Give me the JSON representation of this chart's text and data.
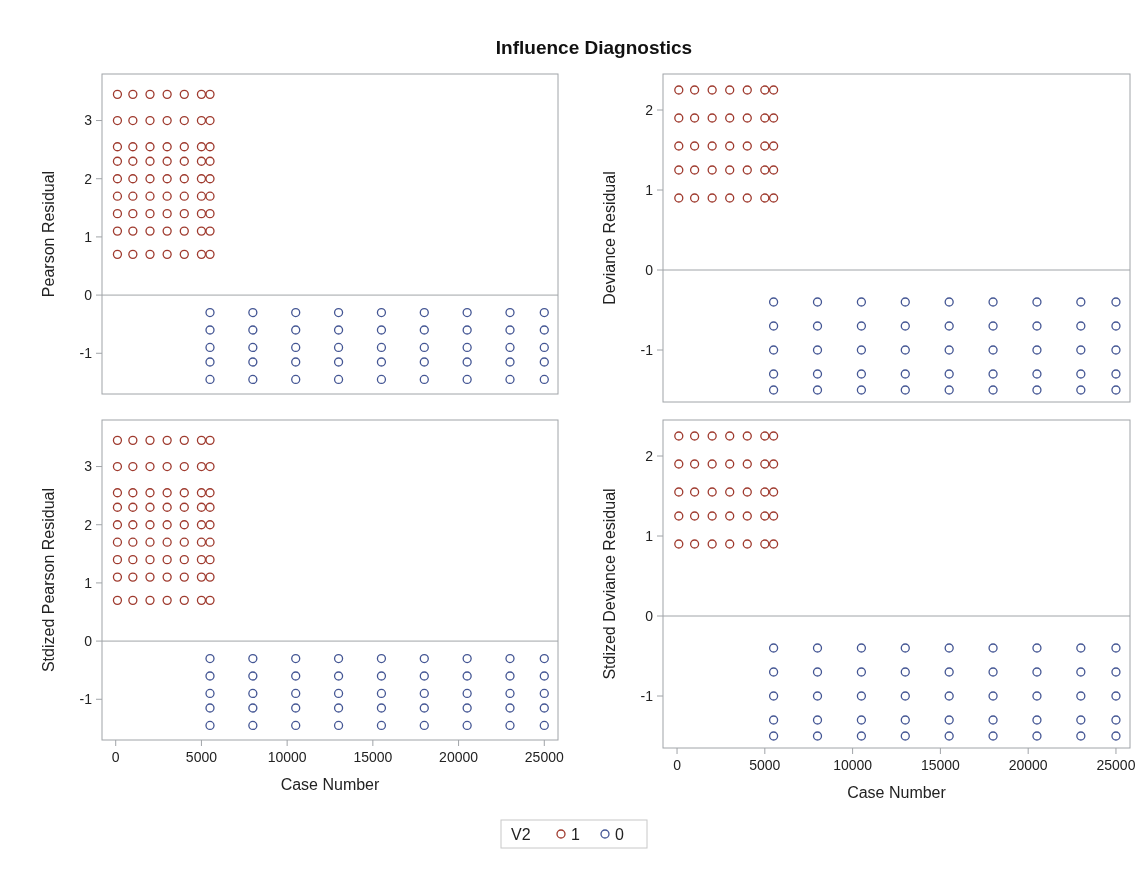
{
  "chart_data": [
    {
      "type": "scatter",
      "title": "Influence Diagnostics",
      "ylabel": "Pearson Residual",
      "xlim": [
        -800,
        25800
      ],
      "ylim": [
        -1.7,
        3.8
      ],
      "yticks": [
        -1,
        0,
        1,
        2,
        3
      ],
      "tick_labels": "y",
      "marker": "circle",
      "ref_lines": [
        {
          "axis": "y",
          "value": 0
        }
      ],
      "series": [
        {
          "color": "#9f3a2e",
          "x": [
            100,
            1000,
            2000,
            3000,
            4000,
            5000,
            5500,
            100,
            1000,
            2000,
            3000,
            4000,
            5000,
            5500,
            100,
            1000,
            2000,
            3000,
            4000,
            5000,
            5500,
            100,
            1000,
            2000,
            3000,
            4000,
            5000,
            5500,
            100,
            1000,
            2000,
            3000,
            4000,
            5000,
            5500,
            100,
            1000,
            2000,
            3000,
            4000,
            5000,
            5500,
            100,
            1000,
            2000,
            3000,
            4000,
            5000,
            5500,
            100,
            1000,
            2000,
            3000,
            4000,
            5000,
            5500,
            100,
            1000,
            2000,
            3000,
            4000,
            5000,
            5500
          ],
          "values": [
            3.45,
            3.45,
            3.45,
            3.45,
            3.45,
            3.45,
            3.45,
            3,
            3,
            3,
            3,
            3,
            3,
            3,
            2.55,
            2.55,
            2.55,
            2.55,
            2.55,
            2.55,
            2.55,
            2.3,
            2.3,
            2.3,
            2.3,
            2.3,
            2.3,
            2.3,
            2,
            2,
            2,
            2,
            2,
            2,
            2,
            1.7,
            1.7,
            1.7,
            1.7,
            1.7,
            1.7,
            1.7,
            1.4,
            1.4,
            1.4,
            1.4,
            1.4,
            1.4,
            1.4,
            1.1,
            1.1,
            1.1,
            1.1,
            1.1,
            1.1,
            1.1,
            0.7,
            0.7,
            0.7,
            0.7,
            0.7,
            0.7,
            0.7
          ]
        },
        {
          "color": "#445694",
          "x": [
            5500,
            8000,
            10500,
            13000,
            15500,
            18000,
            20500,
            23000,
            25000,
            5500,
            8000,
            10500,
            13000,
            15500,
            18000,
            20500,
            23000,
            25000,
            5500,
            8000,
            10500,
            13000,
            15500,
            18000,
            20500,
            23000,
            25000,
            5500,
            8000,
            10500,
            13000,
            15500,
            18000,
            20500,
            23000,
            25000,
            5500,
            8000,
            10500,
            13000,
            15500,
            18000,
            20500,
            23000,
            25000
          ],
          "values": [
            -0.3,
            -0.3,
            -0.3,
            -0.3,
            -0.3,
            -0.3,
            -0.3,
            -0.3,
            -0.3,
            -0.6,
            -0.6,
            -0.6,
            -0.6,
            -0.6,
            -0.6,
            -0.6,
            -0.6,
            -0.6,
            -0.9,
            -0.9,
            -0.9,
            -0.9,
            -0.9,
            -0.9,
            -0.9,
            -0.9,
            -0.9,
            -1.15,
            -1.15,
            -1.15,
            -1.15,
            -1.15,
            -1.15,
            -1.15,
            -1.15,
            -1.15,
            -1.45,
            -1.45,
            -1.45,
            -1.45,
            -1.45,
            -1.45,
            -1.45,
            -1.45,
            -1.45
          ]
        }
      ]
    },
    {
      "type": "scatter",
      "ylabel": "Deviance Residual",
      "xlim": [
        -800,
        25800
      ],
      "ylim": [
        -1.65,
        2.45
      ],
      "yticks": [
        -1,
        0,
        1,
        2
      ],
      "tick_labels": "y",
      "marker": "circle",
      "ref_lines": [
        {
          "axis": "y",
          "value": 0
        }
      ],
      "series": [
        {
          "color": "#9f3a2e",
          "x": [
            100,
            1000,
            2000,
            3000,
            4000,
            5000,
            5500,
            100,
            1000,
            2000,
            3000,
            4000,
            5000,
            5500,
            100,
            1000,
            2000,
            3000,
            4000,
            5000,
            5500,
            100,
            1000,
            2000,
            3000,
            4000,
            5000,
            5500,
            100,
            1000,
            2000,
            3000,
            4000,
            5000,
            5500
          ],
          "values": [
            2.25,
            2.25,
            2.25,
            2.25,
            2.25,
            2.25,
            2.25,
            1.9,
            1.9,
            1.9,
            1.9,
            1.9,
            1.9,
            1.9,
            1.55,
            1.55,
            1.55,
            1.55,
            1.55,
            1.55,
            1.55,
            1.25,
            1.25,
            1.25,
            1.25,
            1.25,
            1.25,
            1.25,
            0.9,
            0.9,
            0.9,
            0.9,
            0.9,
            0.9,
            0.9
          ]
        },
        {
          "color": "#445694",
          "x": [
            5500,
            8000,
            10500,
            13000,
            15500,
            18000,
            20500,
            23000,
            25000,
            5500,
            8000,
            10500,
            13000,
            15500,
            18000,
            20500,
            23000,
            25000,
            5500,
            8000,
            10500,
            13000,
            15500,
            18000,
            20500,
            23000,
            25000,
            5500,
            8000,
            10500,
            13000,
            15500,
            18000,
            20500,
            23000,
            25000,
            5500,
            8000,
            10500,
            13000,
            15500,
            18000,
            20500,
            23000,
            25000
          ],
          "values": [
            -0.4,
            -0.4,
            -0.4,
            -0.4,
            -0.4,
            -0.4,
            -0.4,
            -0.4,
            -0.4,
            -0.7,
            -0.7,
            -0.7,
            -0.7,
            -0.7,
            -0.7,
            -0.7,
            -0.7,
            -0.7,
            -1,
            -1,
            -1,
            -1,
            -1,
            -1,
            -1,
            -1,
            -1,
            -1.3,
            -1.3,
            -1.3,
            -1.3,
            -1.3,
            -1.3,
            -1.3,
            -1.3,
            -1.3,
            -1.5,
            -1.5,
            -1.5,
            -1.5,
            -1.5,
            -1.5,
            -1.5,
            -1.5,
            -1.5
          ]
        }
      ]
    },
    {
      "type": "scatter",
      "xlabel": "Case Number",
      "ylabel": "Stdized Pearson Residual",
      "xlim": [
        -800,
        25800
      ],
      "xticks": [
        0,
        5000,
        10000,
        15000,
        20000,
        25000
      ],
      "ylim": [
        -1.7,
        3.8
      ],
      "yticks": [
        -1,
        0,
        1,
        2,
        3
      ],
      "marker": "circle",
      "ref_lines": [
        {
          "axis": "y",
          "value": 0
        }
      ],
      "series": [
        {
          "color": "#9f3a2e",
          "x": [
            100,
            1000,
            2000,
            3000,
            4000,
            5000,
            5500,
            100,
            1000,
            2000,
            3000,
            4000,
            5000,
            5500,
            100,
            1000,
            2000,
            3000,
            4000,
            5000,
            5500,
            100,
            1000,
            2000,
            3000,
            4000,
            5000,
            5500,
            100,
            1000,
            2000,
            3000,
            4000,
            5000,
            5500,
            100,
            1000,
            2000,
            3000,
            4000,
            5000,
            5500,
            100,
            1000,
            2000,
            3000,
            4000,
            5000,
            5500,
            100,
            1000,
            2000,
            3000,
            4000,
            5000,
            5500,
            100,
            1000,
            2000,
            3000,
            4000,
            5000,
            5500
          ],
          "values": [
            3.45,
            3.45,
            3.45,
            3.45,
            3.45,
            3.45,
            3.45,
            3,
            3,
            3,
            3,
            3,
            3,
            3,
            2.55,
            2.55,
            2.55,
            2.55,
            2.55,
            2.55,
            2.55,
            2.3,
            2.3,
            2.3,
            2.3,
            2.3,
            2.3,
            2.3,
            2,
            2,
            2,
            2,
            2,
            2,
            2,
            1.7,
            1.7,
            1.7,
            1.7,
            1.7,
            1.7,
            1.7,
            1.4,
            1.4,
            1.4,
            1.4,
            1.4,
            1.4,
            1.4,
            1.1,
            1.1,
            1.1,
            1.1,
            1.1,
            1.1,
            1.1,
            0.7,
            0.7,
            0.7,
            0.7,
            0.7,
            0.7,
            0.7
          ]
        },
        {
          "color": "#445694",
          "x": [
            5500,
            8000,
            10500,
            13000,
            15500,
            18000,
            20500,
            23000,
            25000,
            5500,
            8000,
            10500,
            13000,
            15500,
            18000,
            20500,
            23000,
            25000,
            5500,
            8000,
            10500,
            13000,
            15500,
            18000,
            20500,
            23000,
            25000,
            5500,
            8000,
            10500,
            13000,
            15500,
            18000,
            20500,
            23000,
            25000,
            5500,
            8000,
            10500,
            13000,
            15500,
            18000,
            20500,
            23000,
            25000
          ],
          "values": [
            -0.3,
            -0.3,
            -0.3,
            -0.3,
            -0.3,
            -0.3,
            -0.3,
            -0.3,
            -0.3,
            -0.6,
            -0.6,
            -0.6,
            -0.6,
            -0.6,
            -0.6,
            -0.6,
            -0.6,
            -0.6,
            -0.9,
            -0.9,
            -0.9,
            -0.9,
            -0.9,
            -0.9,
            -0.9,
            -0.9,
            -0.9,
            -1.15,
            -1.15,
            -1.15,
            -1.15,
            -1.15,
            -1.15,
            -1.15,
            -1.15,
            -1.15,
            -1.45,
            -1.45,
            -1.45,
            -1.45,
            -1.45,
            -1.45,
            -1.45,
            -1.45,
            -1.45
          ]
        }
      ]
    },
    {
      "type": "scatter",
      "xlabel": "Case Number",
      "ylabel": "Stdized Deviance Residual",
      "xlim": [
        -800,
        25800
      ],
      "xticks": [
        0,
        5000,
        10000,
        15000,
        20000,
        25000
      ],
      "ylim": [
        -1.65,
        2.45
      ],
      "yticks": [
        -1,
        0,
        1,
        2
      ],
      "marker": "circle",
      "legend": "bottom",
      "legend_title": "V2",
      "ref_lines": [
        {
          "axis": "y",
          "value": 0
        }
      ],
      "series": [
        {
          "name": "1",
          "color": "#9f3a2e",
          "x": [
            100,
            1000,
            2000,
            3000,
            4000,
            5000,
            5500,
            100,
            1000,
            2000,
            3000,
            4000,
            5000,
            5500,
            100,
            1000,
            2000,
            3000,
            4000,
            5000,
            5500,
            100,
            1000,
            2000,
            3000,
            4000,
            5000,
            5500,
            100,
            1000,
            2000,
            3000,
            4000,
            5000,
            5500
          ],
          "values": [
            2.25,
            2.25,
            2.25,
            2.25,
            2.25,
            2.25,
            2.25,
            1.9,
            1.9,
            1.9,
            1.9,
            1.9,
            1.9,
            1.9,
            1.55,
            1.55,
            1.55,
            1.55,
            1.55,
            1.55,
            1.55,
            1.25,
            1.25,
            1.25,
            1.25,
            1.25,
            1.25,
            1.25,
            0.9,
            0.9,
            0.9,
            0.9,
            0.9,
            0.9,
            0.9
          ]
        },
        {
          "name": "0",
          "color": "#445694",
          "x": [
            5500,
            8000,
            10500,
            13000,
            15500,
            18000,
            20500,
            23000,
            25000,
            5500,
            8000,
            10500,
            13000,
            15500,
            18000,
            20500,
            23000,
            25000,
            5500,
            8000,
            10500,
            13000,
            15500,
            18000,
            20500,
            23000,
            25000,
            5500,
            8000,
            10500,
            13000,
            15500,
            18000,
            20500,
            23000,
            25000,
            5500,
            8000,
            10500,
            13000,
            15500,
            18000,
            20500,
            23000,
            25000
          ],
          "values": [
            -0.4,
            -0.4,
            -0.4,
            -0.4,
            -0.4,
            -0.4,
            -0.4,
            -0.4,
            -0.4,
            -0.7,
            -0.7,
            -0.7,
            -0.7,
            -0.7,
            -0.7,
            -0.7,
            -0.7,
            -0.7,
            -1,
            -1,
            -1,
            -1,
            -1,
            -1,
            -1,
            -1,
            -1,
            -1.3,
            -1.3,
            -1.3,
            -1.3,
            -1.3,
            -1.3,
            -1.3,
            -1.3,
            -1.3,
            -1.5,
            -1.5,
            -1.5,
            -1.5,
            -1.5,
            -1.5,
            -1.5,
            -1.5,
            -1.5
          ]
        }
      ]
    }
  ]
}
